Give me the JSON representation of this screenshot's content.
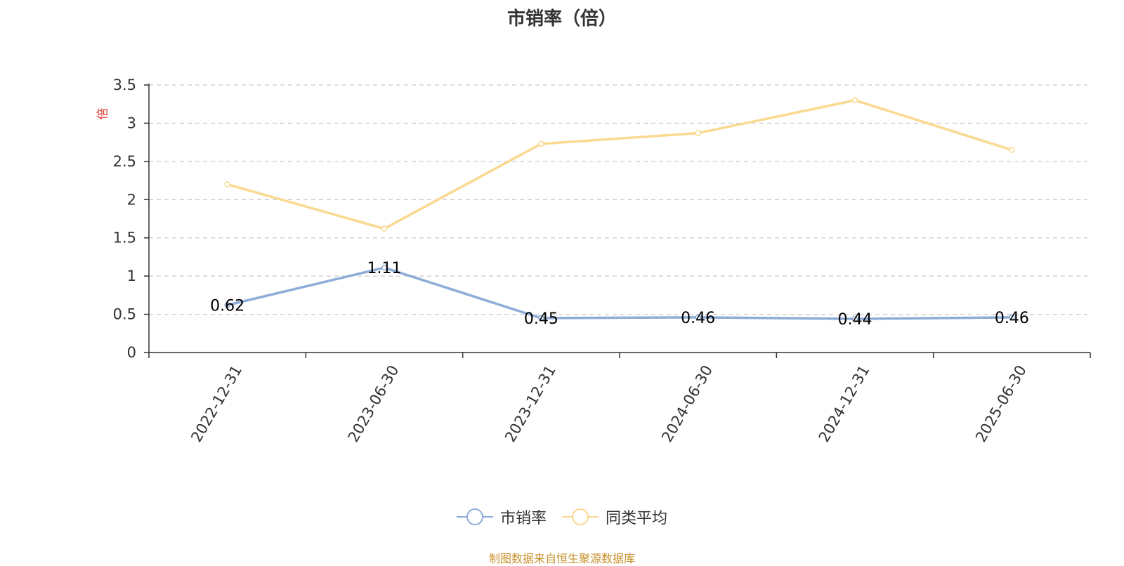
{
  "chart_data": {
    "type": "line",
    "title": "市销率（倍）",
    "ylabel": "倍",
    "xlabel": "",
    "ylim": [
      0,
      3.5
    ],
    "yticks": [
      0,
      0.5,
      1,
      1.5,
      2,
      2.5,
      3,
      3.5
    ],
    "ytick_labels": [
      "0",
      "0.5",
      "1",
      "1.5",
      "2",
      "2.5",
      "3",
      "3.5"
    ],
    "categories": [
      "2022-12-31",
      "2023-06-30",
      "2023-12-31",
      "2024-06-30",
      "2024-12-31",
      "2025-06-30"
    ],
    "series": [
      {
        "name": "市销率",
        "color": "#8eacd8",
        "values": [
          0.62,
          1.11,
          0.45,
          0.46,
          0.44,
          0.46
        ],
        "labels": [
          "0.62",
          "1.11",
          "0.45",
          "0.46",
          "0.44",
          "0.46"
        ],
        "show_labels": true
      },
      {
        "name": "同类平均",
        "color": "#fad991",
        "values": [
          2.2,
          1.62,
          2.73,
          2.87,
          3.3,
          2.65
        ],
        "show_labels": false
      }
    ],
    "grid": true,
    "grid_style": "dashed",
    "legend_position": "bottom",
    "source": "制图数据来自恒生聚源数据库"
  }
}
